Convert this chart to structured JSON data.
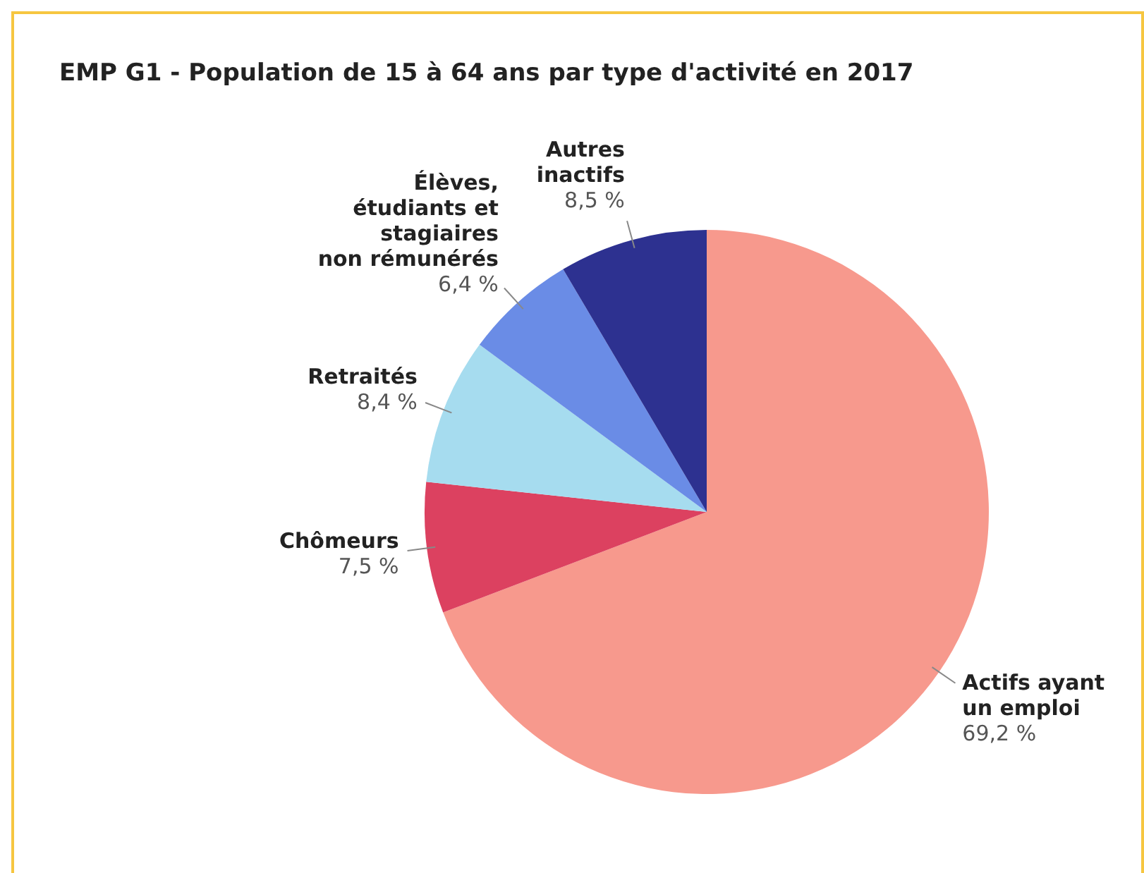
{
  "chart_data": {
    "type": "pie",
    "title": "EMP G1 - Population de 15 à 64 ans par type d'activité en 2017",
    "categories": [
      "Actifs ayant\nun emploi",
      "Chômeurs",
      "Retraités",
      "Élèves,\nétudiants et\nstagiaires\nnon rémunérés",
      "Autres\ninactifs"
    ],
    "values": [
      69.2,
      7.5,
      8.4,
      6.4,
      8.5
    ],
    "colors": [
      "#f7998d",
      "#dc4160",
      "#a6dcef",
      "#6a8ce6",
      "#2d3190"
    ],
    "value_labels": [
      "69,2 %",
      "7,5 %",
      "8,4 %",
      "6,4 %",
      "8,5 %"
    ]
  }
}
